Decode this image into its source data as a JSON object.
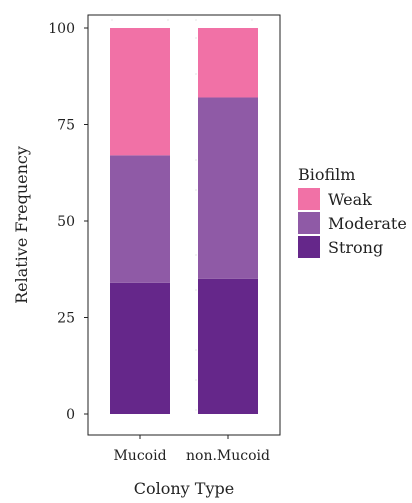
{
  "chart_data": {
    "type": "bar",
    "stacked": true,
    "xlabel": "Colony Type",
    "ylabel": "Relative Frequency",
    "ylim": [
      0,
      100
    ],
    "yticks": [
      0,
      25,
      50,
      75,
      100
    ],
    "grid": false,
    "legend_position": "right",
    "legend_title": "Biofilm",
    "categories": [
      "Mucoid",
      "non.Mucoid"
    ],
    "series": [
      {
        "name": "Strong",
        "values": [
          34,
          35
        ],
        "color": "#65278a"
      },
      {
        "name": "Moderate",
        "values": [
          33,
          47
        ],
        "color": "#8f5aa6"
      },
      {
        "name": "Weak",
        "values": [
          33,
          18
        ],
        "color": "#f171a6"
      }
    ],
    "legend_order": [
      "Weak",
      "Moderate",
      "Strong"
    ]
  }
}
